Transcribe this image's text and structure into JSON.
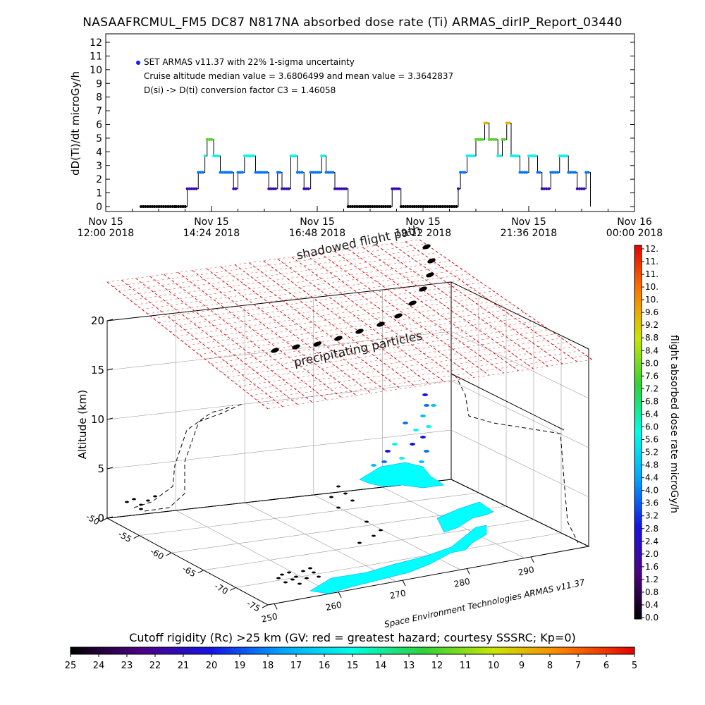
{
  "title": "NASAAFRCMUL_FM5 DC87 N817NA absorbed dose rate (Ti) ARMAS_dirIP_Report_03440",
  "annotations": {
    "legend_entry": "SET ARMAS v11.37 with 22% 1-sigma uncertainty",
    "median_mean": "Cruise altitude median value = 3.6806499 and mean value = 3.3642837",
    "conversion": "D(si) -> D(ti) conversion factor C3 = 1.46058",
    "shadowed": "shadowed flight path",
    "precipitating": "precipitating particles",
    "credit": "Space Environment Technologies ARMAS v11.37"
  },
  "caption": "Cutoff rigidity (Rc) >25 km (GV: red = greatest hazard; courtesy SSSRC; Kp=0)",
  "colors": {
    "layer_red": "#cc0000",
    "flight_path": "#000000",
    "ground_track": "#00ffff"
  },
  "chart_data": [
    {
      "type": "line",
      "ylabel": "dD(Ti)/dt microGy/h",
      "ylim": [
        0,
        12
      ],
      "yticks": [
        "0",
        "1",
        "2",
        "3",
        "4",
        "5",
        "6",
        "7",
        "8",
        "9",
        "10",
        "11",
        "12"
      ],
      "xlim_hours": [
        12.0,
        24.0
      ],
      "xticks": [
        {
          "line1": "Nov 15",
          "line2": "12:00 2018"
        },
        {
          "line1": "Nov 15",
          "line2": "14:24 2018"
        },
        {
          "line1": "Nov 15",
          "line2": "16:48 2018"
        },
        {
          "line1": "Nov 15",
          "line2": "19:12 2018"
        },
        {
          "line1": "Nov 15",
          "line2": "21:36 2018"
        },
        {
          "line1": "Nov 16",
          "line2": "00:00 2018"
        }
      ],
      "series": [
        {
          "name": "SET ARMAS v11.37 with 22% 1-sigma uncertainty",
          "x": [
            12.8,
            13.6,
            13.85,
            14.1,
            14.25,
            14.3,
            14.45,
            14.6,
            14.9,
            15.0,
            15.15,
            15.4,
            15.7,
            15.9,
            16.0,
            16.2,
            16.35,
            16.5,
            16.65,
            16.9,
            17.0,
            17.2,
            17.5,
            17.8,
            18.0,
            18.3,
            18.5,
            18.7,
            19.0,
            19.3,
            19.6,
            20.0,
            20.05,
            20.2,
            20.4,
            20.6,
            20.7,
            20.9,
            21.0,
            21.1,
            21.2,
            21.4,
            21.6,
            21.8,
            21.9,
            22.1,
            22.3,
            22.5,
            22.7,
            22.9,
            23.0
          ],
          "y": [
            0.0,
            0.0,
            1.3,
            2.5,
            3.7,
            4.9,
            3.7,
            2.5,
            1.3,
            2.5,
            3.7,
            2.5,
            1.3,
            2.5,
            1.3,
            3.7,
            2.5,
            1.3,
            2.5,
            3.7,
            2.5,
            1.3,
            0.0,
            0.0,
            0.0,
            0.0,
            1.3,
            0.0,
            0.0,
            0.0,
            0.0,
            1.3,
            2.5,
            3.7,
            4.9,
            6.1,
            4.9,
            3.7,
            4.9,
            6.1,
            3.7,
            2.5,
            3.7,
            2.5,
            1.3,
            2.5,
            3.7,
            2.5,
            1.3,
            2.5,
            0.0
          ]
        }
      ]
    },
    {
      "type": "scatter",
      "zlabel": "Altitude (km)",
      "zlim": [
        0,
        20
      ],
      "zticks": [
        "0",
        "5",
        "10",
        "15",
        "20"
      ],
      "latitude_ticks": [
        "-50",
        "-55",
        "-60",
        "-65",
        "-70",
        "-75"
      ],
      "longitude_ticks": [
        "250",
        "260",
        "270",
        "280",
        "290"
      ],
      "colorbar": {
        "label": "flight absorbed dose rate microGy/h",
        "ticks": [
          "0.0",
          "0.4",
          "0.8",
          "1.2",
          "1.6",
          "2.0",
          "2.4",
          "2.8",
          "3.2",
          "3.6",
          "4.0",
          "4.4",
          "4.8",
          "5.2",
          "5.6",
          "6.0",
          "6.4",
          "6.8",
          "7.2",
          "7.6",
          "8.0",
          "8.4",
          "8.8",
          "9.2",
          "9.6",
          "10.",
          "10.",
          "11.",
          "11.",
          "12."
        ]
      },
      "rigidity_colorbar": {
        "ticks": [
          "25",
          "24",
          "23",
          "22",
          "21",
          "20",
          "19",
          "18",
          "17",
          "16",
          "15",
          "14",
          "13",
          "12",
          "11",
          "10",
          "9",
          "8",
          "7",
          "6",
          "5"
        ]
      }
    }
  ]
}
